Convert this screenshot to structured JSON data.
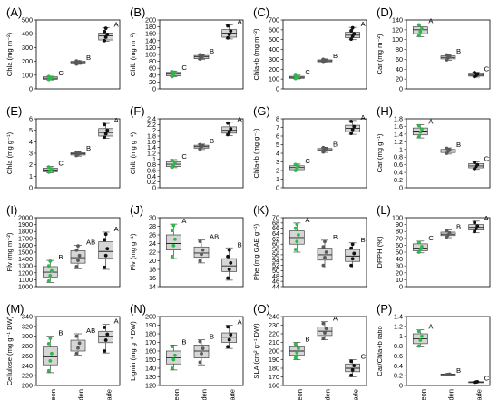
{
  "colors": {
    "neon": "#2db84a",
    "golden": "#5a5a5a",
    "jade": "#111111",
    "box_fill": "#d6d6d6",
    "box_stroke": "#444444"
  },
  "chart_data": [
    {
      "label": "(A)",
      "type": "box",
      "ylabel": "Chla (mg m⁻²)",
      "ylim": [
        0,
        500
      ],
      "yticks": [
        0,
        100,
        200,
        300,
        400,
        500
      ],
      "categories": [
        "Neon",
        "Golden",
        "Jade"
      ],
      "show_x": false,
      "boxes": [
        {
          "q1": 70,
          "med": 78,
          "q3": 88,
          "min": 65,
          "max": 92,
          "points": [
            68,
            76,
            84,
            90
          ],
          "sig": "C"
        },
        {
          "q1": 182,
          "med": 192,
          "q3": 200,
          "min": 178,
          "max": 205,
          "points": [
            180,
            190,
            197,
            203
          ],
          "sig": "B"
        },
        {
          "q1": 355,
          "med": 385,
          "q3": 405,
          "min": 345,
          "max": 445,
          "points": [
            350,
            375,
            395,
            415,
            440
          ],
          "sig": "A"
        }
      ]
    },
    {
      "label": "(B)",
      "type": "box",
      "ylabel": "Chlb (mg m⁻²)",
      "ylim": [
        0,
        200
      ],
      "yticks": [
        0,
        20,
        40,
        60,
        80,
        100,
        120,
        140,
        160,
        180,
        200
      ],
      "categories": [
        "Neon",
        "Golden",
        "Jade"
      ],
      "show_x": false,
      "boxes": [
        {
          "q1": 38,
          "med": 43,
          "q3": 48,
          "min": 35,
          "max": 52,
          "points": [
            36,
            42,
            46,
            50
          ],
          "sig": "C"
        },
        {
          "q1": 88,
          "med": 93,
          "q3": 97,
          "min": 85,
          "max": 100,
          "points": [
            87,
            92,
            95,
            99
          ],
          "sig": "B"
        },
        {
          "q1": 150,
          "med": 162,
          "q3": 172,
          "min": 145,
          "max": 185,
          "points": [
            148,
            158,
            168,
            183
          ],
          "sig": "A"
        }
      ]
    },
    {
      "label": "(C)",
      "type": "box",
      "ylabel": "Chla+b (mg m⁻²)",
      "ylim": [
        0,
        700
      ],
      "yticks": [
        0,
        100,
        200,
        300,
        400,
        500,
        600,
        700
      ],
      "categories": [
        "Neon",
        "Golden",
        "Jade"
      ],
      "show_x": false,
      "boxes": [
        {
          "q1": 108,
          "med": 118,
          "q3": 128,
          "min": 102,
          "max": 140,
          "points": [
            105,
            115,
            125,
            138
          ],
          "sig": "C"
        },
        {
          "q1": 275,
          "med": 285,
          "q3": 295,
          "min": 265,
          "max": 305,
          "points": [
            270,
            282,
            292,
            300
          ],
          "sig": "B"
        },
        {
          "q1": 520,
          "med": 545,
          "q3": 575,
          "min": 500,
          "max": 625,
          "points": [
            505,
            535,
            560,
            590,
            620
          ],
          "sig": "A"
        }
      ]
    },
    {
      "label": "(D)",
      "type": "box",
      "ylabel": "Car (mg m⁻²)",
      "ylim": [
        0,
        140
      ],
      "yticks": [
        0,
        20,
        40,
        60,
        80,
        100,
        120,
        140
      ],
      "categories": [
        "Neon",
        "Golden",
        "Jade"
      ],
      "show_x": false,
      "boxes": [
        {
          "q1": 112,
          "med": 120,
          "q3": 126,
          "min": 106,
          "max": 132,
          "points": [
            108,
            116,
            122,
            130
          ],
          "sig": "A"
        },
        {
          "q1": 61,
          "med": 64,
          "q3": 67,
          "min": 58,
          "max": 70,
          "points": [
            59,
            63,
            66,
            69
          ],
          "sig": "B"
        },
        {
          "q1": 26,
          "med": 28,
          "q3": 31,
          "min": 24,
          "max": 34,
          "points": [
            25,
            27,
            30,
            33
          ],
          "sig": "C"
        }
      ]
    },
    {
      "label": "(E)",
      "type": "box",
      "ylabel": "Chla (mg g⁻¹)",
      "ylim": [
        0,
        6
      ],
      "yticks": [
        0,
        1,
        2,
        3,
        4,
        5,
        6
      ],
      "categories": [
        "Neon",
        "Golden",
        "Jade"
      ],
      "show_x": false,
      "boxes": [
        {
          "q1": 1.4,
          "med": 1.55,
          "q3": 1.7,
          "min": 1.3,
          "max": 1.85,
          "points": [
            1.35,
            1.5,
            1.65,
            1.8
          ],
          "sig": "C"
        },
        {
          "q1": 2.85,
          "med": 2.95,
          "q3": 3.05,
          "min": 2.75,
          "max": 3.15,
          "points": [
            2.8,
            2.9,
            3.0,
            3.1
          ],
          "sig": "B"
        },
        {
          "q1": 4.5,
          "med": 4.8,
          "q3": 5.15,
          "min": 4.3,
          "max": 5.6,
          "points": [
            4.4,
            4.7,
            5.0,
            5.5
          ],
          "sig": "A"
        }
      ]
    },
    {
      "label": "(F)",
      "type": "box",
      "ylabel": "Chlb (mg g⁻¹)",
      "ylim": [
        0,
        2.4
      ],
      "yticks": [
        0,
        0.2,
        0.4,
        0.6,
        0.8,
        1.0,
        1.2,
        1.4,
        1.6,
        1.8,
        2.0,
        2.2,
        2.4
      ],
      "categories": [
        "Neon",
        "Golden",
        "Jade"
      ],
      "show_x": false,
      "boxes": [
        {
          "q1": 0.74,
          "med": 0.82,
          "q3": 0.9,
          "min": 0.7,
          "max": 0.98,
          "points": [
            0.72,
            0.8,
            0.88,
            0.95
          ],
          "sig": "C"
        },
        {
          "q1": 1.38,
          "med": 1.43,
          "q3": 1.48,
          "min": 1.33,
          "max": 1.52,
          "points": [
            1.35,
            1.42,
            1.47,
            1.5
          ],
          "sig": "B"
        },
        {
          "q1": 1.9,
          "med": 2.0,
          "q3": 2.12,
          "min": 1.82,
          "max": 2.28,
          "points": [
            1.85,
            1.95,
            2.05,
            2.25
          ],
          "sig": "A"
        }
      ]
    },
    {
      "label": "(G)",
      "type": "box",
      "ylabel": "Chla+b (mg g⁻¹)",
      "ylim": [
        0,
        8
      ],
      "yticks": [
        0,
        1,
        2,
        3,
        4,
        5,
        6,
        7,
        8
      ],
      "categories": [
        "Neon",
        "Golden",
        "Jade"
      ],
      "show_x": false,
      "boxes": [
        {
          "q1": 2.1,
          "med": 2.35,
          "q3": 2.55,
          "min": 1.95,
          "max": 2.75,
          "points": [
            2.0,
            2.3,
            2.5,
            2.7
          ],
          "sig": "C"
        },
        {
          "q1": 4.25,
          "med": 4.4,
          "q3": 4.55,
          "min": 4.1,
          "max": 4.7,
          "points": [
            4.15,
            4.35,
            4.5,
            4.65
          ],
          "sig": "B"
        },
        {
          "q1": 6.5,
          "med": 6.9,
          "q3": 7.25,
          "min": 6.2,
          "max": 7.8,
          "points": [
            6.3,
            6.75,
            7.1,
            7.7
          ],
          "sig": "A"
        }
      ]
    },
    {
      "label": "(H)",
      "type": "box",
      "ylabel": "Car (mg g⁻¹)",
      "ylim": [
        0,
        1.8
      ],
      "yticks": [
        0,
        0.2,
        0.4,
        0.6,
        0.8,
        1.0,
        1.2,
        1.4,
        1.6,
        1.8
      ],
      "categories": [
        "Neon",
        "Golden",
        "Jade"
      ],
      "show_x": false,
      "boxes": [
        {
          "q1": 1.38,
          "med": 1.48,
          "q3": 1.56,
          "min": 1.3,
          "max": 1.65,
          "points": [
            1.33,
            1.45,
            1.53,
            1.62
          ],
          "sig": "A"
        },
        {
          "q1": 0.92,
          "med": 0.96,
          "q3": 1.0,
          "min": 0.88,
          "max": 1.04,
          "points": [
            0.9,
            0.95,
            0.99,
            1.03
          ],
          "sig": "B"
        },
        {
          "q1": 0.52,
          "med": 0.57,
          "q3": 0.63,
          "min": 0.48,
          "max": 0.68,
          "points": [
            0.5,
            0.55,
            0.6,
            0.66
          ],
          "sig": "C"
        }
      ]
    },
    {
      "label": "(I)",
      "type": "box",
      "ylabel": "Flv (mg m⁻²)",
      "ylim": [
        1000,
        2000
      ],
      "yticks": [
        1000,
        1100,
        1200,
        1300,
        1400,
        1500,
        1600,
        1700,
        1800,
        1900,
        2000
      ],
      "categories": [
        "Neon",
        "Golden",
        "Jade"
      ],
      "show_x": false,
      "boxes": [
        {
          "q1": 1140,
          "med": 1210,
          "q3": 1290,
          "min": 1060,
          "max": 1380,
          "points": [
            1080,
            1160,
            1230,
            1300,
            1370
          ],
          "sig": "B"
        },
        {
          "q1": 1340,
          "med": 1420,
          "q3": 1520,
          "min": 1260,
          "max": 1600,
          "points": [
            1290,
            1380,
            1450,
            1530,
            1590
          ],
          "sig": "AB"
        },
        {
          "q1": 1410,
          "med": 1510,
          "q3": 1650,
          "min": 1250,
          "max": 1790,
          "points": [
            1280,
            1450,
            1550,
            1680,
            1760
          ],
          "sig": "A"
        }
      ]
    },
    {
      "label": "(J)",
      "type": "box",
      "ylabel": "Flv (mg g⁻¹)",
      "ylim": [
        14,
        30
      ],
      "yticks": [
        14,
        16,
        18,
        20,
        22,
        24,
        26,
        28,
        30
      ],
      "categories": [
        "Neon",
        "Golden",
        "Jade"
      ],
      "show_x": false,
      "boxes": [
        {
          "q1": 22.5,
          "med": 24.0,
          "q3": 26.0,
          "min": 20.5,
          "max": 28.5,
          "points": [
            21,
            23.5,
            25,
            27,
            28.2
          ],
          "sig": "A"
        },
        {
          "q1": 20.8,
          "med": 21.8,
          "q3": 23.2,
          "min": 19.5,
          "max": 24.8,
          "points": [
            20,
            21.5,
            22.5,
            24.5
          ],
          "sig": "AB"
        },
        {
          "q1": 17.5,
          "med": 18.8,
          "q3": 20.5,
          "min": 15.5,
          "max": 23.0,
          "points": [
            16,
            18,
            19.5,
            21,
            22.5
          ],
          "sig": "B"
        }
      ]
    },
    {
      "label": "(K)",
      "type": "box",
      "ylabel": "Phe (mg GAE g⁻¹)",
      "ylim": [
        44,
        70
      ],
      "yticks": [
        44,
        46,
        48,
        50,
        52,
        54,
        56,
        58,
        60,
        62,
        64,
        66,
        68,
        70
      ],
      "categories": [
        "Neon",
        "Golden",
        "Jade"
      ],
      "show_x": false,
      "boxes": [
        {
          "q1": 60.0,
          "med": 62.5,
          "q3": 65.0,
          "min": 57.0,
          "max": 68.0,
          "points": [
            58,
            61,
            63.5,
            66,
            67.5
          ],
          "sig": "A"
        },
        {
          "q1": 54.0,
          "med": 56.0,
          "q3": 58.5,
          "min": 51.0,
          "max": 61.5,
          "points": [
            52,
            55,
            57,
            59,
            61
          ],
          "sig": "B"
        },
        {
          "q1": 53.5,
          "med": 55.5,
          "q3": 58.0,
          "min": 51.0,
          "max": 60.5,
          "points": [
            52,
            54.5,
            56.5,
            58.5,
            60
          ],
          "sig": "B"
        }
      ]
    },
    {
      "label": "(L)",
      "type": "box",
      "ylabel": "DPPH (%)",
      "ylim": [
        0,
        100
      ],
      "yticks": [
        0,
        10,
        20,
        30,
        40,
        50,
        60,
        70,
        80,
        90,
        100
      ],
      "categories": [
        "Neon",
        "Golden",
        "Jade"
      ],
      "show_x": false,
      "boxes": [
        {
          "q1": 52,
          "med": 56,
          "q3": 62,
          "min": 49,
          "max": 66,
          "points": [
            50,
            54,
            58,
            64
          ],
          "sig": "C"
        },
        {
          "q1": 74,
          "med": 76,
          "q3": 79,
          "min": 71,
          "max": 82,
          "points": [
            72,
            75,
            78,
            81
          ],
          "sig": "B"
        },
        {
          "q1": 82,
          "med": 86,
          "q3": 90,
          "min": 78,
          "max": 95,
          "points": [
            80,
            84,
            88,
            93
          ],
          "sig": "A"
        }
      ]
    },
    {
      "label": "(M)",
      "type": "box",
      "ylabel": "Cellulose (mg g⁻¹ DW)",
      "ylim": [
        200,
        340
      ],
      "yticks": [
        200,
        220,
        240,
        260,
        280,
        300,
        320,
        340
      ],
      "categories": [
        "Neon",
        "Golden",
        "Jade"
      ],
      "show_x": true,
      "boxes": [
        {
          "q1": 242,
          "med": 258,
          "q3": 278,
          "min": 226,
          "max": 300,
          "points": [
            230,
            250,
            265,
            285,
            296
          ],
          "sig": "B"
        },
        {
          "q1": 270,
          "med": 280,
          "q3": 292,
          "min": 262,
          "max": 305,
          "points": [
            265,
            276,
            286,
            300
          ],
          "sig": "AB"
        },
        {
          "q1": 287,
          "med": 300,
          "q3": 310,
          "min": 266,
          "max": 324,
          "points": [
            270,
            292,
            304,
            318
          ],
          "sig": "A"
        }
      ]
    },
    {
      "label": "(N)",
      "type": "box",
      "ylabel": "Lignin (mg g⁻¹ DW)",
      "ylim": [
        120,
        200
      ],
      "yticks": [
        120,
        130,
        140,
        150,
        160,
        170,
        180,
        190,
        200
      ],
      "categories": [
        "Neon",
        "Golden",
        "Jade"
      ],
      "show_x": true,
      "boxes": [
        {
          "q1": 145,
          "med": 152,
          "q3": 160,
          "min": 138,
          "max": 167,
          "points": [
            140,
            150,
            155,
            165
          ],
          "sig": "B"
        },
        {
          "q1": 152,
          "med": 160,
          "q3": 167,
          "min": 144,
          "max": 173,
          "points": [
            147,
            157,
            163,
            171
          ],
          "sig": "B"
        },
        {
          "q1": 170,
          "med": 176,
          "q3": 181,
          "min": 163,
          "max": 190,
          "points": [
            165,
            173,
            179,
            188
          ],
          "sig": "A"
        }
      ]
    },
    {
      "label": "(O)",
      "type": "box",
      "ylabel": "SLA (cm² g⁻¹ DW)",
      "ylim": [
        160,
        240
      ],
      "yticks": [
        160,
        170,
        180,
        190,
        200,
        210,
        220,
        230,
        240
      ],
      "categories": [
        "Neon",
        "Golden",
        "Jade"
      ],
      "show_x": true,
      "boxes": [
        {
          "q1": 195,
          "med": 200,
          "q3": 205,
          "min": 190,
          "max": 210,
          "points": [
            192,
            198,
            203,
            208
          ],
          "sig": "B"
        },
        {
          "q1": 218,
          "med": 223,
          "q3": 228,
          "min": 213,
          "max": 234,
          "points": [
            215,
            221,
            226,
            232
          ],
          "sig": "A"
        },
        {
          "q1": 176,
          "med": 180,
          "q3": 185,
          "min": 170,
          "max": 190,
          "points": [
            172,
            178,
            183,
            188
          ],
          "sig": "C"
        }
      ]
    },
    {
      "label": "(P)",
      "type": "box",
      "ylabel": "Car/Chla+b ratio",
      "ylim": [
        0,
        1.4
      ],
      "yticks": [
        0,
        0.2,
        0.4,
        0.6,
        0.8,
        1.0,
        1.2,
        1.4
      ],
      "categories": [
        "Neon",
        "Golden",
        "Jade"
      ],
      "show_x": true,
      "boxes": [
        {
          "q1": 0.85,
          "med": 0.95,
          "q3": 1.05,
          "min": 0.78,
          "max": 1.13,
          "points": [
            0.8,
            0.92,
            1.0,
            1.1
          ],
          "sig": "A"
        },
        {
          "q1": 0.22,
          "med": 0.225,
          "q3": 0.23,
          "min": 0.215,
          "max": 0.235,
          "points": [
            0.22,
            0.225,
            0.23
          ],
          "sig": "B"
        },
        {
          "q1": 0.065,
          "med": 0.07,
          "q3": 0.075,
          "min": 0.06,
          "max": 0.08,
          "points": [
            0.065,
            0.07,
            0.075
          ],
          "sig": "C"
        }
      ]
    }
  ]
}
